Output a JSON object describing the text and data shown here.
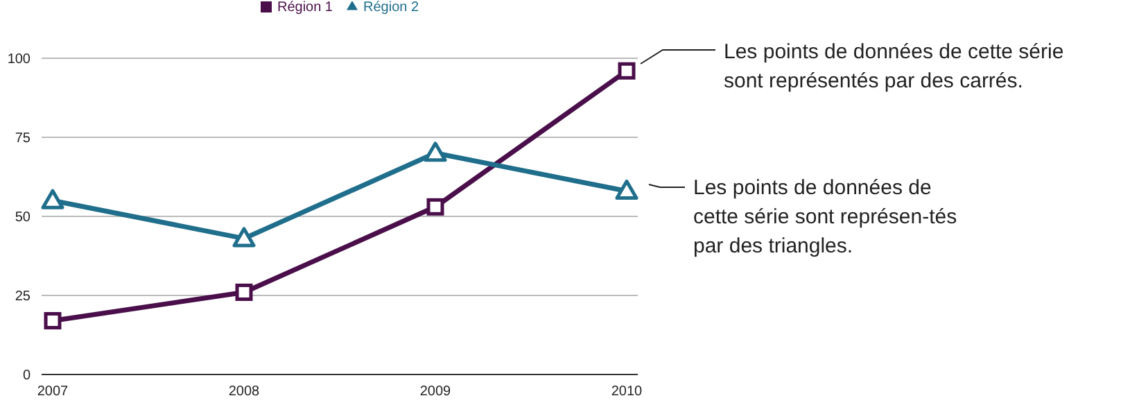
{
  "chart_data": {
    "type": "line",
    "categories": [
      "2007",
      "2008",
      "2009",
      "2010"
    ],
    "series": [
      {
        "name": "Région 1",
        "color": "#4a0f4a",
        "values": [
          17,
          26,
          53,
          96
        ],
        "marker": "square"
      },
      {
        "name": "Région 2",
        "color": "#1f6e8c",
        "values": [
          55,
          43,
          70,
          58
        ],
        "marker": "triangle"
      }
    ],
    "ylim": [
      0,
      100
    ],
    "yticks": [
      0,
      25,
      50,
      75,
      100
    ],
    "grid": "y",
    "legend": "top",
    "annotations": [
      "Les points de données de cette série sont représentés par des carrés.",
      "Les points de données de cette série sont représen-tés par des triangles."
    ]
  }
}
